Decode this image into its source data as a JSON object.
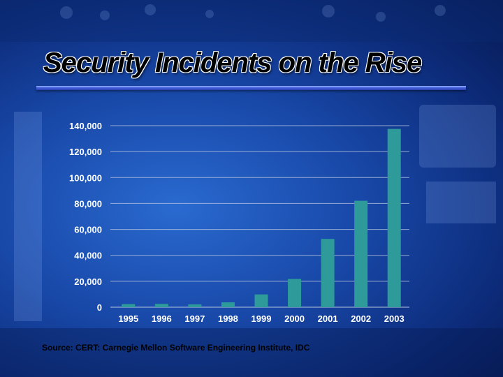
{
  "slide": {
    "title": "Security Incidents on the Rise",
    "source": "Source: CERT: Carnegie Mellon Software Engineering Institute, IDC"
  },
  "colors": {
    "bar": "#2e9a9a",
    "gridline": "#b8c4dc",
    "text": "#ffffff"
  },
  "chart_data": {
    "type": "bar",
    "title": "Security Incidents on the Rise",
    "xlabel": "",
    "ylabel": "",
    "categories": [
      "1995",
      "1996",
      "1997",
      "1998",
      "1999",
      "2000",
      "2001",
      "2002",
      "2003"
    ],
    "values": [
      2412,
      2573,
      2134,
      3734,
      9859,
      21756,
      52658,
      82094,
      137529
    ],
    "ylim": [
      0,
      140000
    ],
    "yticks": [
      0,
      20000,
      40000,
      60000,
      80000,
      100000,
      120000,
      140000
    ],
    "ytick_labels": [
      "0",
      "20,000",
      "40,000",
      "60,000",
      "80,000",
      "100,000",
      "120,000",
      "140,000"
    ],
    "grid": true,
    "legend": "none"
  }
}
